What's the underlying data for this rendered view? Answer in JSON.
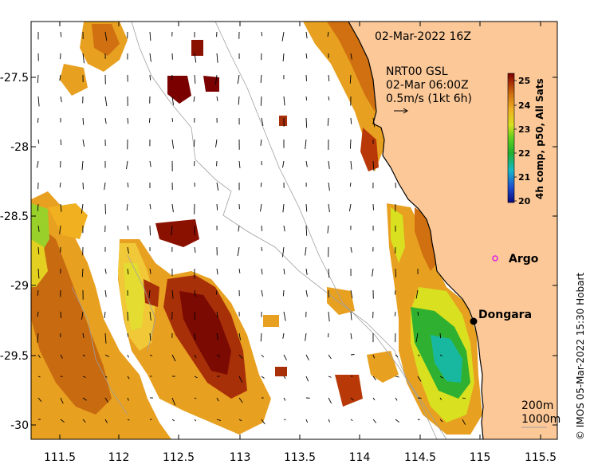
{
  "title_date": "02-Mar-2022 16Z",
  "current_source": {
    "line1": "NRT00 GSL",
    "line2": "02-Mar 06:00Z",
    "scale_label": "0.5m/s (1kt 6h)"
  },
  "colorbar": {
    "label": "4h comp, p50, All Sats",
    "ticks": [
      "25",
      "24",
      "23",
      "22",
      "21",
      "20"
    ],
    "colors": [
      "#0a0a7a",
      "#1e50d2",
      "#17b8c8",
      "#20b030",
      "#60d020",
      "#d8e020",
      "#f0b020",
      "#d07010",
      "#a83008",
      "#7a0000"
    ]
  },
  "axes": {
    "x_ticks": [
      "111.5",
      "112",
      "112.5",
      "113",
      "113.5",
      "114",
      "114.5",
      "115",
      "115.5"
    ],
    "y_ticks": [
      "-27.5",
      "-28",
      "-28.5",
      "-29",
      "-29.5",
      "-30"
    ]
  },
  "places": {
    "argo": "Argo",
    "dongara": "Dongara"
  },
  "isobaths": {
    "label_200": "200m",
    "label_1000": "1000m"
  },
  "credit": "© IMOS 05-Mar-2022 15:30 Hobart",
  "colors": {
    "land": "#fcc898",
    "sea_background": "#ffffff",
    "argo_marker": "#e020e0",
    "coastline": "#000000"
  }
}
